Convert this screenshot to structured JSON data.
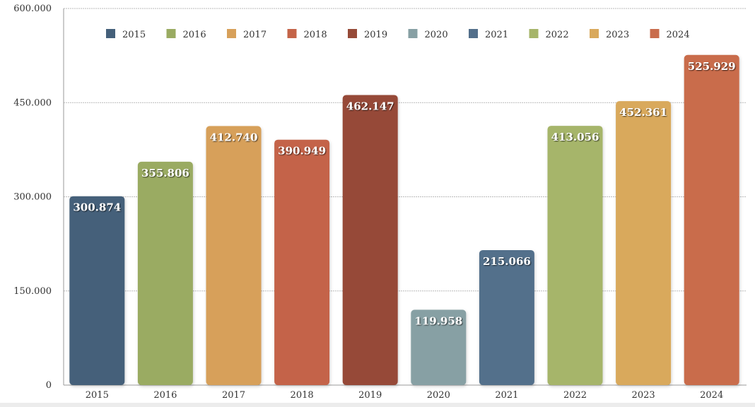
{
  "chart_data": {
    "type": "bar",
    "title": "",
    "xlabel": "",
    "ylabel": "",
    "ylim": [
      0,
      600000
    ],
    "yticks": [
      {
        "value": 0,
        "label": "0"
      },
      {
        "value": 150000,
        "label": "150.000"
      },
      {
        "value": 300000,
        "label": "300.000"
      },
      {
        "value": 450000,
        "label": "450.000"
      },
      {
        "value": 600000,
        "label": "600.000"
      }
    ],
    "grid": true,
    "legend_position": "top",
    "categories": [
      "2015",
      "2016",
      "2017",
      "2018",
      "2019",
      "2020",
      "2021",
      "2022",
      "2023",
      "2024"
    ],
    "values": [
      300874,
      355806,
      412740,
      390949,
      462147,
      119958,
      215066,
      413056,
      452361,
      525929
    ],
    "data_labels": [
      "300.874",
      "355.806",
      "412.740",
      "390.949",
      "462.147",
      "119.958",
      "215.066",
      "413.056",
      "452.361",
      "525.929"
    ],
    "colors": [
      "#44607a",
      "#9aab62",
      "#d7a05a",
      "#c46448",
      "#964a38",
      "#87a0a4",
      "#536f8b",
      "#a6b56a",
      "#d9a95c",
      "#c96c4c"
    ],
    "legend": [
      "2015",
      "2016",
      "2017",
      "2018",
      "2019",
      "2020",
      "2021",
      "2022",
      "2023",
      "2024"
    ]
  }
}
